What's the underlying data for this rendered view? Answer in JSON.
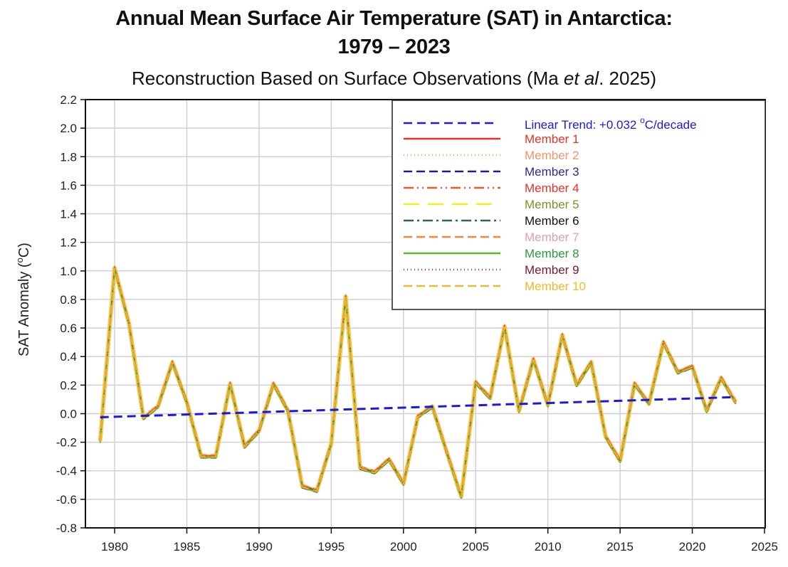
{
  "chart_data": {
    "type": "line",
    "title_line1": "Annual Mean Surface Air Temperature (SAT) in Antarctica:",
    "title_line2": "1979 – 2023",
    "subtitle_pre": "Reconstruction Based on Surface Observations (Ma ",
    "subtitle_ital": "et al",
    "subtitle_post": ". 2025)",
    "xlabel": "",
    "ylabel": "SAT Anomaly (°C)",
    "ylabel_main": "SAT Anomaly (",
    "ylabel_deg": "o",
    "ylabel_unit": "C)",
    "xlim": [
      1976,
      2025
    ],
    "ylim": [
      -0.8,
      2.2
    ],
    "xticks": [
      1980,
      1985,
      1990,
      1995,
      2000,
      2005,
      2010,
      2015,
      2020,
      2025
    ],
    "yticks": [
      -0.8,
      -0.6,
      -0.4,
      -0.2,
      0.0,
      0.2,
      0.4,
      0.6,
      0.8,
      1.0,
      1.2,
      1.4,
      1.6,
      1.8,
      2.0,
      2.2
    ],
    "grid": true,
    "legend_position": "top-right",
    "x": [
      1979,
      1980,
      1981,
      1982,
      1983,
      1984,
      1985,
      1986,
      1987,
      1988,
      1989,
      1990,
      1991,
      1992,
      1993,
      1994,
      1995,
      1996,
      1997,
      1998,
      1999,
      2000,
      2001,
      2002,
      2003,
      2004,
      2005,
      2006,
      2007,
      2008,
      2009,
      2010,
      2011,
      2012,
      2013,
      2014,
      2015,
      2016,
      2017,
      2018,
      2019,
      2020,
      2021,
      2022,
      2023
    ],
    "ensemble_mean": [
      -0.19,
      1.02,
      0.63,
      -0.03,
      0.05,
      0.36,
      0.08,
      -0.3,
      -0.3,
      0.21,
      -0.23,
      -0.12,
      0.21,
      0.02,
      -0.51,
      -0.54,
      -0.21,
      0.82,
      -0.38,
      -0.41,
      -0.32,
      -0.49,
      -0.02,
      0.05,
      -0.27,
      -0.58,
      0.22,
      0.11,
      0.61,
      0.02,
      0.38,
      0.06,
      0.55,
      0.2,
      0.36,
      -0.16,
      -0.33,
      0.21,
      0.07,
      0.5,
      0.29,
      0.33,
      0.02,
      0.25,
      0.08
    ],
    "trend": {
      "label": "Linear Trend: +0.032 ",
      "label_deg": "o",
      "label_unit": "C/decade",
      "slope_per_decade": 0.032,
      "start": [
        1979,
        -0.025
      ],
      "end": [
        2023,
        0.116
      ],
      "color": "#1a1adc"
    },
    "series": [
      {
        "name": "Member 1",
        "color": "#e8302a",
        "text_color": "#e8302a",
        "dash": "solid",
        "offset": 0.0
      },
      {
        "name": "Member 2",
        "color": "#f5b04a",
        "text_color": "#f0956a",
        "dash": "dot",
        "offset": 0.01
      },
      {
        "name": "Member 3",
        "color": "#1c1c8c",
        "text_color": "#2a2a9a",
        "dash": "dash",
        "offset": -0.01
      },
      {
        "name": "Member 4",
        "color": "#f05a28",
        "text_color": "#e8302a",
        "dash": "dashdotdot",
        "offset": 0.005
      },
      {
        "name": "Member 5",
        "color": "#f2ee22",
        "text_color": "#8a8a2a",
        "dash": "longdash",
        "offset": -0.005
      },
      {
        "name": "Member 6",
        "color": "#2a6a48",
        "text_color": "#111111",
        "dash": "dashdot",
        "offset": 0.0
      },
      {
        "name": "Member 7",
        "color": "#f0883a",
        "text_color": "#e0a0a8",
        "dash": "dash",
        "offset": 0.012
      },
      {
        "name": "Member 8",
        "color": "#5ab82a",
        "text_color": "#2a9a3a",
        "dash": "solid",
        "offset": -0.008
      },
      {
        "name": "Member 9",
        "color": "#c8304a",
        "text_color": "#7a1a2a",
        "dash": "dot",
        "offset": 0.003
      },
      {
        "name": "Member 10",
        "color": "#f5b82a",
        "text_color": "#f5b82a",
        "dash": "dash",
        "offset": -0.003
      }
    ]
  }
}
